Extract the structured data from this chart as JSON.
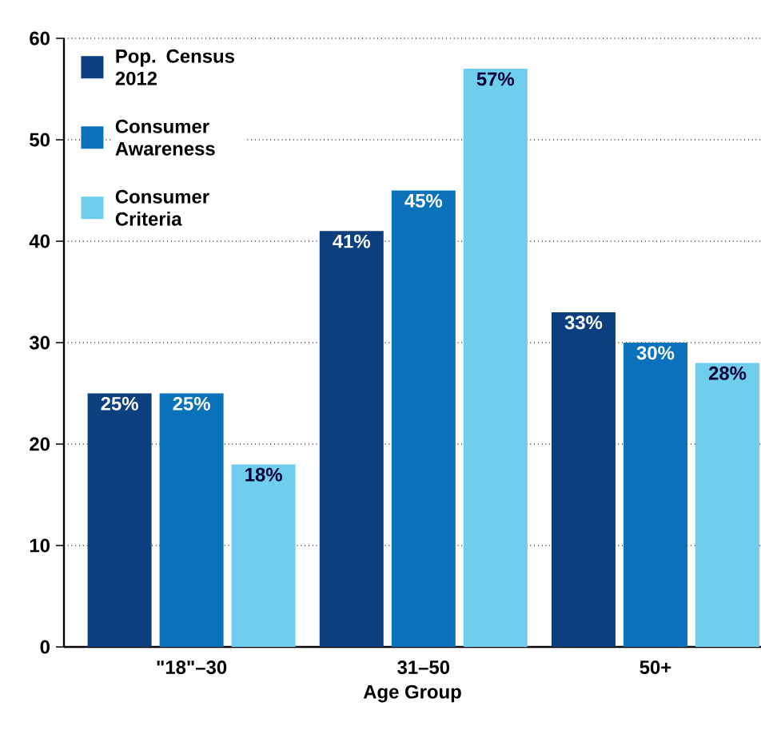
{
  "chart_data": {
    "type": "bar",
    "xlabel": "Age Group",
    "categories": [
      "\"18\"–30",
      "31–50",
      "50+"
    ],
    "series": [
      {
        "name": "Pop. Census 2012",
        "color": "#0b3f7e",
        "values": [
          25,
          41,
          33
        ],
        "value_labels": [
          "25%",
          "41%",
          "33%"
        ]
      },
      {
        "name": "Consumer Awareness",
        "color": "#0a72ba",
        "values": [
          25,
          45,
          30
        ],
        "value_labels": [
          "25%",
          "45%",
          "30%"
        ]
      },
      {
        "name": "Consumer Criteria",
        "color": "#6fcdee",
        "values": [
          18,
          57,
          28
        ],
        "value_labels": [
          "18%",
          "57%",
          "28%"
        ]
      }
    ],
    "ylim": [
      0,
      60
    ],
    "yticks": [
      0,
      10,
      20,
      30,
      40,
      50,
      60
    ],
    "grid": "y",
    "legend": "top left"
  }
}
